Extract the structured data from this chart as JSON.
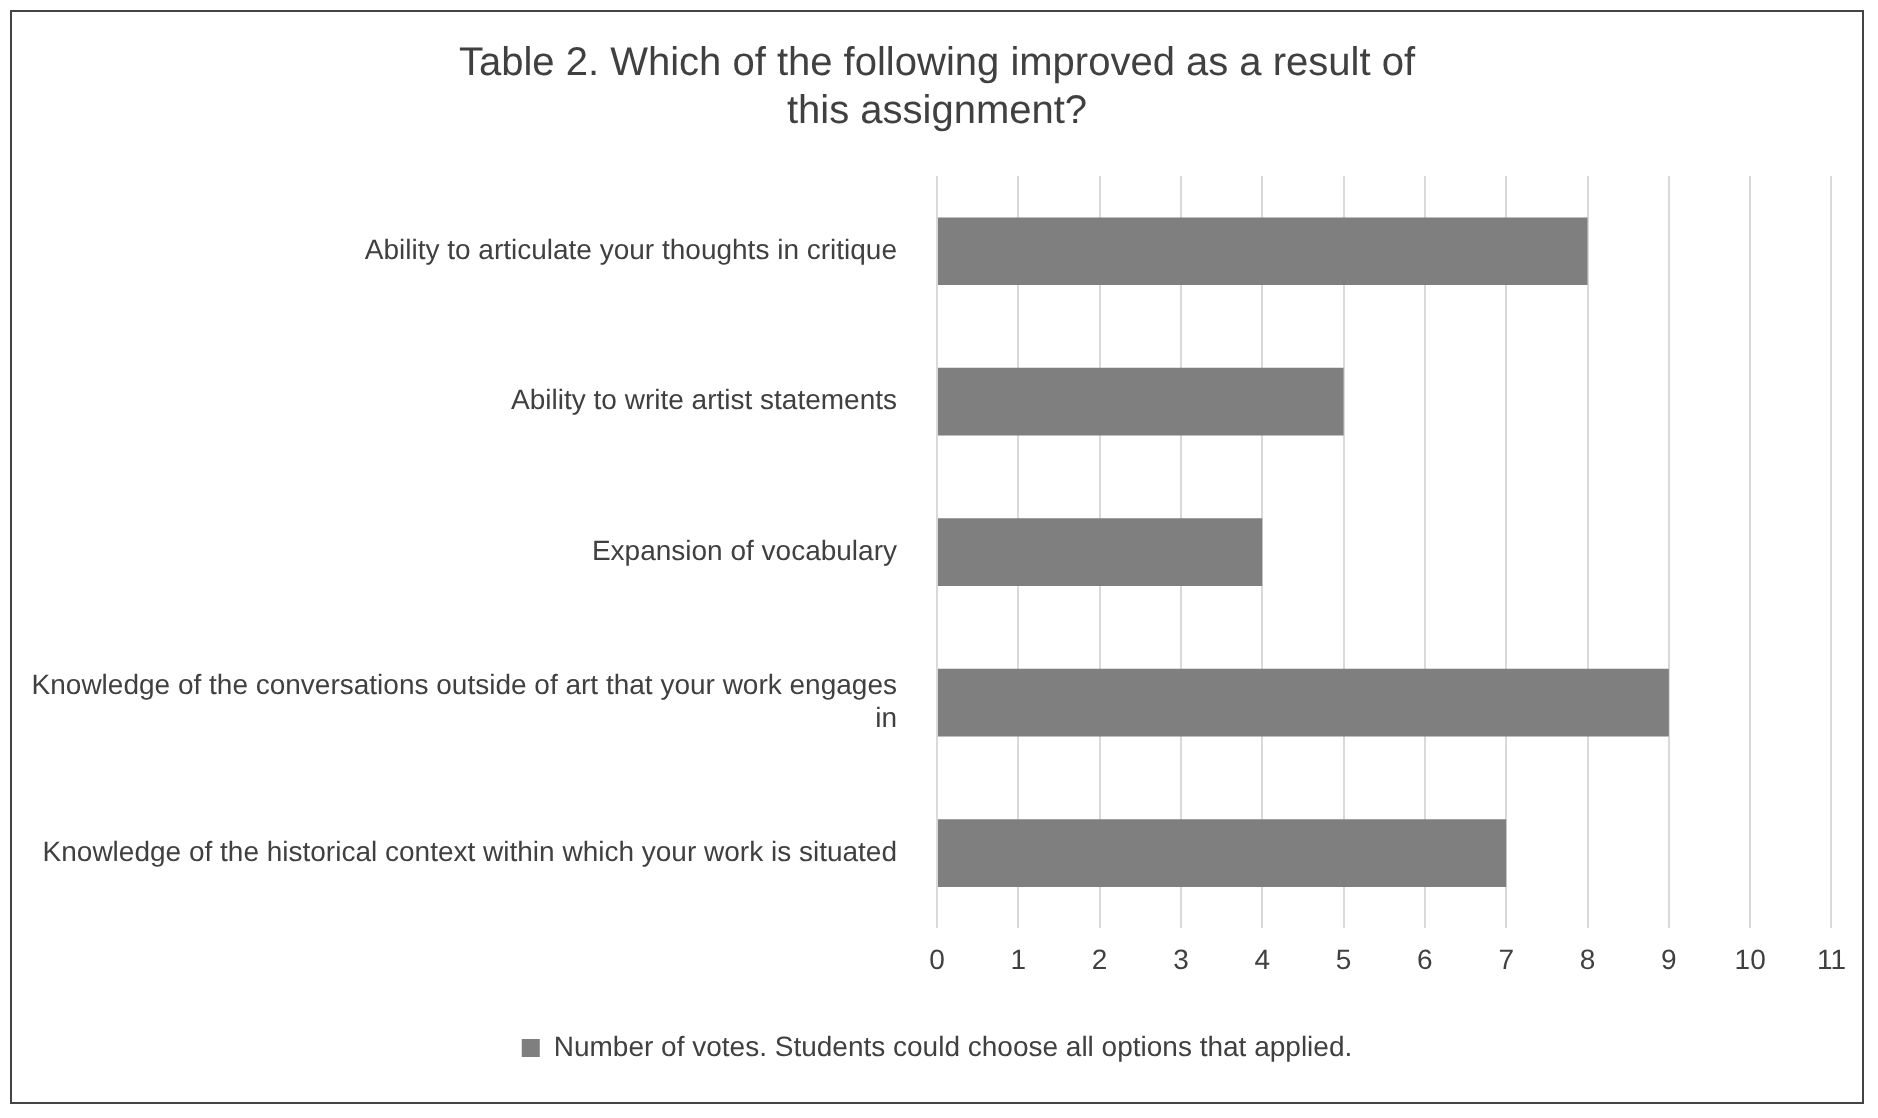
{
  "chart_data": {
    "type": "bar",
    "orientation": "horizontal",
    "title": "Table 2. Which of the following improved as a result of this assignment?",
    "categories": [
      "Ability to articulate your thoughts in critique",
      "Ability to write artist statements",
      "Expansion of vocabulary",
      "Knowledge of the conversations outside of art that your work engages in",
      "Knowledge of the historical context within which your work is situated"
    ],
    "series": [
      {
        "name": "Number of votes. Students could choose all options that applied.",
        "color": "#7f7f7f",
        "values": [
          8,
          5,
          4,
          9,
          7
        ]
      }
    ],
    "xlim": [
      0,
      11
    ],
    "xticks": [
      0,
      1,
      2,
      3,
      4,
      5,
      6,
      7,
      8,
      9,
      10,
      11
    ],
    "grid": "x",
    "legend": "bottom"
  }
}
